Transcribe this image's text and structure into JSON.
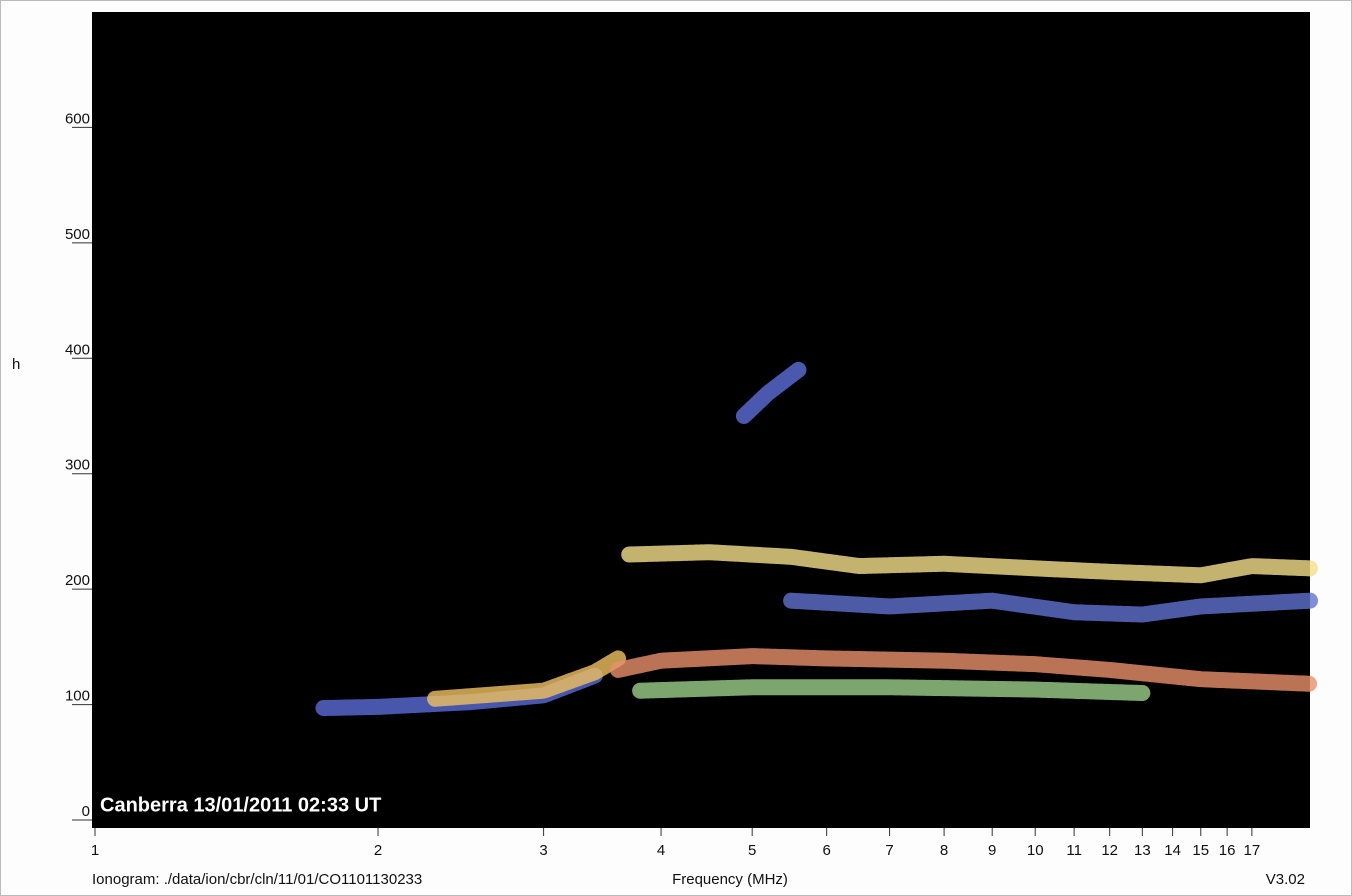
{
  "chart_data": {
    "type": "ionogram",
    "annotation": "Canberra  13/01/2011  02:33 UT",
    "file_label": "Ionogram: ./data/ion/cbr/cln/11/01/CO1101130233",
    "x_label": "Frequency (MHz)",
    "version": "V3.02",
    "y_label": "h",
    "xlog": true,
    "xlim": [
      1,
      19.6
    ],
    "xticks": [
      1,
      2,
      3,
      4,
      5,
      6,
      7,
      8,
      9,
      10,
      11,
      12,
      13,
      14,
      15,
      16,
      17
    ],
    "ylim": [
      0,
      700
    ],
    "yticks": [
      0,
      100,
      200,
      300,
      400,
      500,
      600
    ],
    "series": [
      {
        "color": "#5a6bd6",
        "x": [
          1.75,
          2,
          2.5,
          3,
          3.4
        ],
        "values": [
          97,
          98,
          102,
          108,
          125
        ]
      },
      {
        "color": "#f0c060",
        "x": [
          2.3,
          3,
          3.4,
          3.6
        ],
        "values": [
          105,
          112,
          128,
          140
        ]
      },
      {
        "color": "#e8906a",
        "x": [
          3.6,
          4,
          5,
          6,
          8,
          10,
          12,
          15,
          19.6
        ],
        "values": [
          130,
          138,
          142,
          140,
          138,
          135,
          130,
          122,
          118
        ]
      },
      {
        "color": "#9ccf8a",
        "x": [
          3.8,
          5,
          7,
          10,
          13
        ],
        "values": [
          112,
          115,
          115,
          113,
          110
        ]
      },
      {
        "color": "#6070d0",
        "x": [
          5.5,
          7,
          9,
          11,
          13,
          15,
          19.6
        ],
        "values": [
          190,
          185,
          190,
          180,
          178,
          185,
          190
        ]
      },
      {
        "color": "#f5e08a",
        "x": [
          3.7,
          4.5,
          5.5,
          6.5,
          8,
          10,
          12,
          15,
          17,
          19.6
        ],
        "values": [
          230,
          232,
          228,
          220,
          222,
          218,
          215,
          212,
          220,
          218
        ]
      },
      {
        "color": "#5d6ed8",
        "x": [
          4.9,
          5.2,
          5.6
        ],
        "values": [
          350,
          370,
          390
        ]
      }
    ]
  }
}
